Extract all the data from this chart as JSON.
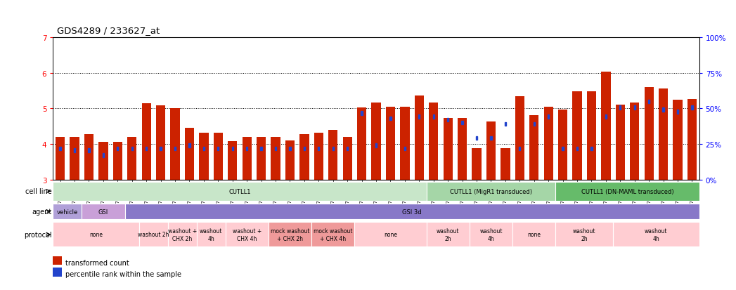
{
  "title": "GDS4289 / 233627_at",
  "samples": [
    "GSM731500",
    "GSM731501",
    "GSM731502",
    "GSM731503",
    "GSM731504",
    "GSM731505",
    "GSM731518",
    "GSM731519",
    "GSM731520",
    "GSM731506",
    "GSM731507",
    "GSM731508",
    "GSM731509",
    "GSM731510",
    "GSM731511",
    "GSM731512",
    "GSM731513",
    "GSM731514",
    "GSM731515",
    "GSM731516",
    "GSM731517",
    "GSM731521",
    "GSM731522",
    "GSM731523",
    "GSM731524",
    "GSM731525",
    "GSM731526",
    "GSM731527",
    "GSM731528",
    "GSM731529",
    "GSM731531",
    "GSM731532",
    "GSM731533",
    "GSM731534",
    "GSM731535",
    "GSM731536",
    "GSM731537",
    "GSM731538",
    "GSM731539",
    "GSM731540",
    "GSM731541",
    "GSM731542",
    "GSM731543",
    "GSM731544",
    "GSM731545"
  ],
  "red_values": [
    4.19,
    4.19,
    4.28,
    4.06,
    4.06,
    4.19,
    5.14,
    5.08,
    5.0,
    4.45,
    4.32,
    4.32,
    4.08,
    4.19,
    4.19,
    4.19,
    4.09,
    4.28,
    4.32,
    4.4,
    4.19,
    5.02,
    5.17,
    5.05,
    5.05,
    5.35,
    5.17,
    4.72,
    4.72,
    3.89,
    4.64,
    3.88,
    5.34,
    4.81,
    5.04,
    4.97,
    5.47,
    5.48,
    6.04,
    5.1,
    5.17,
    5.6,
    5.55,
    5.25,
    5.27
  ],
  "blue_values": [
    3.87,
    3.82,
    3.82,
    3.68,
    3.87,
    3.87,
    3.87,
    3.87,
    3.87,
    3.96,
    3.87,
    3.87,
    3.87,
    3.87,
    3.87,
    3.87,
    3.87,
    3.87,
    3.87,
    3.87,
    3.87,
    4.87,
    3.96,
    4.72,
    3.87,
    4.77,
    4.77,
    4.68,
    4.6,
    4.17,
    4.17,
    4.56,
    3.87,
    4.56,
    4.77,
    3.87,
    3.87,
    3.87,
    4.77,
    5.02,
    5.02,
    5.19,
    4.97,
    4.91,
    5.02
  ],
  "ylim": [
    3,
    7
  ],
  "cell_line_groups": [
    {
      "label": "CUTLL1",
      "start": 0,
      "end": 26,
      "color": "#c8e6c9"
    },
    {
      "label": "CUTLL1 (MigR1 transduced)",
      "start": 26,
      "end": 35,
      "color": "#a5d6a7"
    },
    {
      "label": "CUTLL1 (DN-MAML transduced)",
      "start": 35,
      "end": 45,
      "color": "#66bb6a"
    }
  ],
  "agent_groups": [
    {
      "label": "vehicle",
      "start": 0,
      "end": 2,
      "color": "#b0a0d8"
    },
    {
      "label": "GSI",
      "start": 2,
      "end": 5,
      "color": "#c9a0d8"
    },
    {
      "label": "GSI 3d",
      "start": 5,
      "end": 45,
      "color": "#8878c8"
    }
  ],
  "protocol_groups": [
    {
      "label": "none",
      "start": 0,
      "end": 6,
      "color": "#ffcdd2"
    },
    {
      "label": "washout 2h",
      "start": 6,
      "end": 8,
      "color": "#ffcdd2"
    },
    {
      "label": "washout +\nCHX 2h",
      "start": 8,
      "end": 10,
      "color": "#ffcdd2"
    },
    {
      "label": "washout\n4h",
      "start": 10,
      "end": 12,
      "color": "#ffcdd2"
    },
    {
      "label": "washout +\nCHX 4h",
      "start": 12,
      "end": 15,
      "color": "#ffcdd2"
    },
    {
      "label": "mock washout\n+ CHX 2h",
      "start": 15,
      "end": 18,
      "color": "#ef9a9a"
    },
    {
      "label": "mock washout\n+ CHX 4h",
      "start": 18,
      "end": 21,
      "color": "#ef9a9a"
    },
    {
      "label": "none",
      "start": 21,
      "end": 26,
      "color": "#ffcdd2"
    },
    {
      "label": "washout\n2h",
      "start": 26,
      "end": 29,
      "color": "#ffcdd2"
    },
    {
      "label": "washout\n4h",
      "start": 29,
      "end": 32,
      "color": "#ffcdd2"
    },
    {
      "label": "none",
      "start": 32,
      "end": 35,
      "color": "#ffcdd2"
    },
    {
      "label": "washout\n2h",
      "start": 35,
      "end": 39,
      "color": "#ffcdd2"
    },
    {
      "label": "washout\n4h",
      "start": 39,
      "end": 45,
      "color": "#ffcdd2"
    }
  ],
  "bar_width": 0.65,
  "red_color": "#cc2200",
  "blue_color": "#2244cc",
  "background_color": "#ffffff",
  "legend_items": [
    {
      "label": "transformed count",
      "color": "#cc2200"
    },
    {
      "label": "percentile rank within the sample",
      "color": "#2244cc"
    }
  ]
}
